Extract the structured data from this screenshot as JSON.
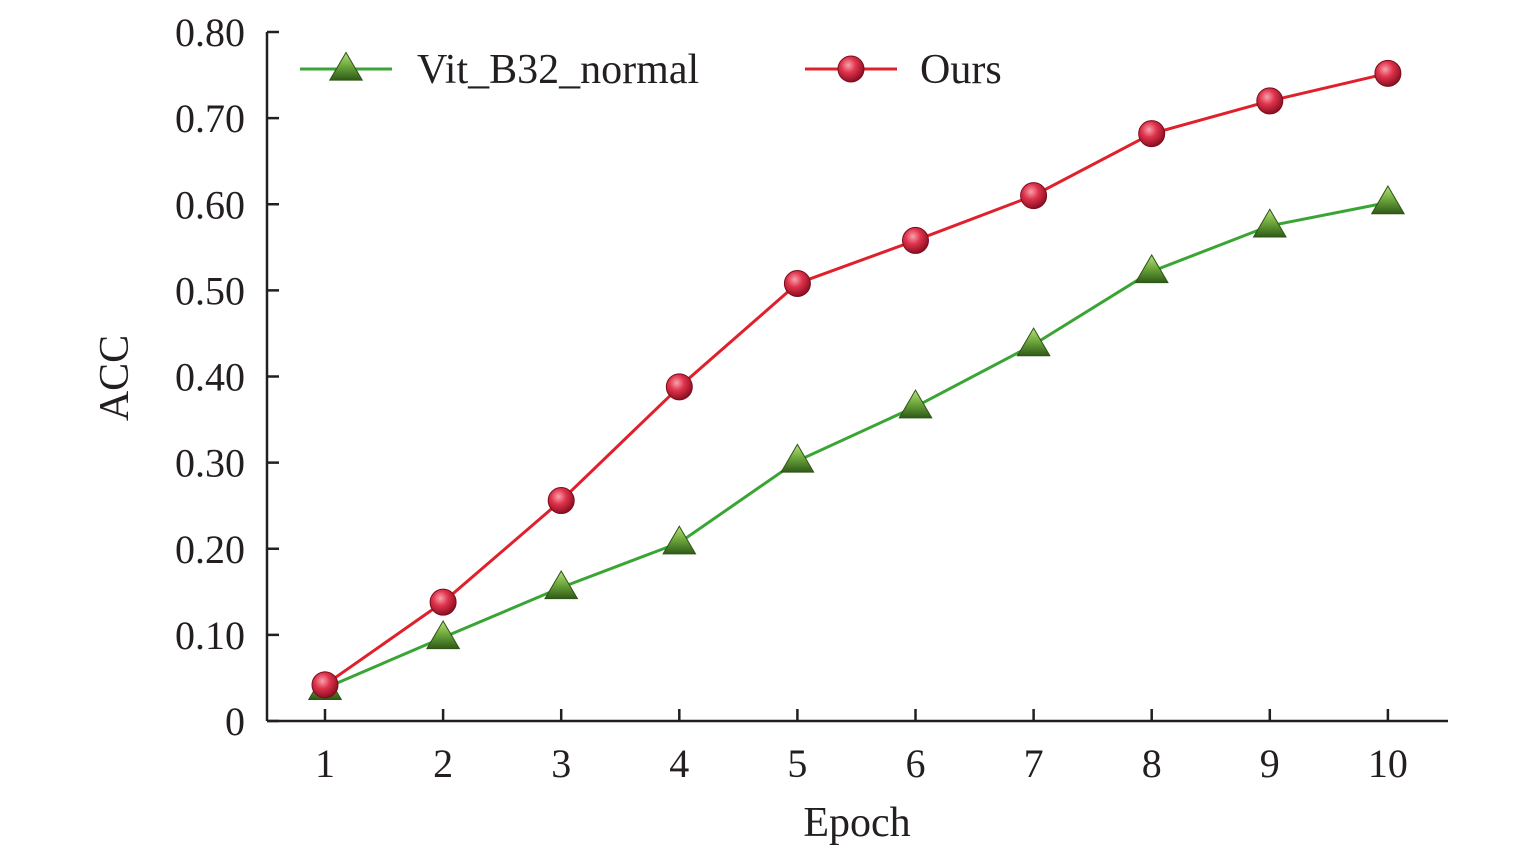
{
  "chart_data": {
    "type": "line",
    "title": "",
    "xlabel": "Epoch",
    "ylabel": "ACC",
    "x": [
      1,
      2,
      3,
      4,
      5,
      6,
      7,
      8,
      9,
      10
    ],
    "x_tick_labels": [
      "1",
      "2",
      "3",
      "4",
      "5",
      "6",
      "7",
      "8",
      "9",
      "10"
    ],
    "ylim": [
      0,
      0.8
    ],
    "y_ticks": [
      0,
      0.1,
      0.2,
      0.3,
      0.4,
      0.5,
      0.6,
      0.7,
      0.8
    ],
    "y_tick_labels": [
      "0",
      "0.10",
      "0.20",
      "0.30",
      "0.40",
      "0.50",
      "0.60",
      "0.70",
      "0.80"
    ],
    "grid": false,
    "legend_position": "top",
    "series": [
      {
        "name": "Vit_B32_normal",
        "color": "#3aa535",
        "marker": "triangle",
        "marker_color": "#5a9a2a",
        "values": [
          0.038,
          0.097,
          0.155,
          0.207,
          0.302,
          0.365,
          0.437,
          0.522,
          0.575,
          0.602
        ]
      },
      {
        "name": "Ours",
        "color": "#e0202a",
        "marker": "circle",
        "marker_color": "#d11f3a",
        "values": [
          0.042,
          0.138,
          0.256,
          0.388,
          0.508,
          0.558,
          0.61,
          0.682,
          0.72,
          0.752
        ]
      }
    ]
  }
}
